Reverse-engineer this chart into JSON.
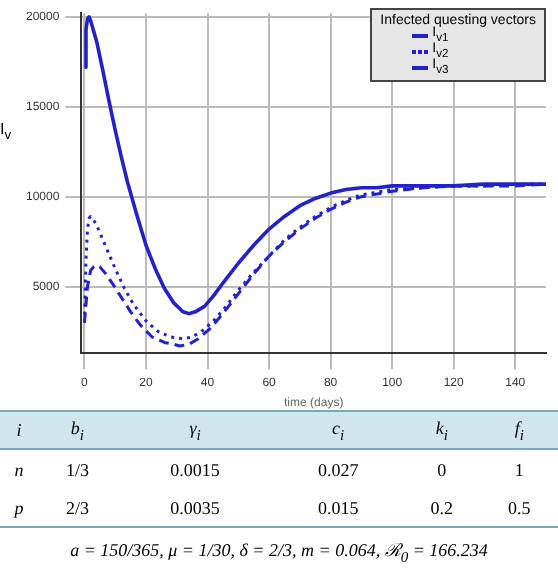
{
  "chart_data": {
    "type": "line",
    "xlabel": "time (days)",
    "ylabel": "I$_{v}$",
    "legend_title": "Infected  questing vectors",
    "legend": "top right",
    "grid": true,
    "marker": "none",
    "xlim": [
      -1,
      150
    ],
    "xticks": [
      0,
      20,
      40,
      60,
      80,
      100,
      120,
      140
    ],
    "ylim": [
      1300,
      20200
    ],
    "yticks": [
      5000,
      10000,
      15000,
      20000
    ],
    "series": [
      {
        "name": "I$_{v1}$",
        "color": "#2222cc",
        "line_style": "solid",
        "x": [
          0,
          0.5,
          1,
          1.5,
          2,
          3,
          4,
          6,
          8,
          10,
          12,
          14,
          17,
          20,
          23,
          26,
          29,
          32,
          34,
          36,
          39,
          42,
          45,
          50,
          55,
          60,
          65,
          70,
          75,
          80,
          85,
          90,
          95,
          100,
          110,
          120,
          130,
          140,
          150
        ],
        "values": [
          17200,
          19300,
          19900,
          20000,
          19800,
          19200,
          18600,
          17000,
          15300,
          13700,
          12200,
          10800,
          9000,
          7300,
          6000,
          4900,
          4100,
          3600,
          3500,
          3600,
          3900,
          4500,
          5200,
          6300,
          7300,
          8200,
          8900,
          9500,
          9900,
          10200,
          10400,
          10500,
          10500,
          10600,
          10600,
          10600,
          10700,
          10700,
          10700
        ]
      },
      {
        "name": "I$_{v2}$",
        "color": "#2222cc",
        "line_style": "dotted",
        "x": [
          0,
          0.5,
          1,
          1.5,
          2,
          3,
          4,
          6,
          8,
          10,
          13,
          16,
          20,
          24,
          28,
          32,
          35,
          38,
          42,
          46,
          50,
          55,
          60,
          65,
          70,
          75,
          80,
          85,
          90,
          100,
          110,
          120,
          130,
          140,
          150
        ],
        "values": [
          3000,
          6500,
          8200,
          8800,
          8900,
          8700,
          8400,
          7600,
          6800,
          6000,
          4900,
          4000,
          3100,
          2500,
          2200,
          2100,
          2200,
          2500,
          3100,
          3900,
          4800,
          5800,
          6700,
          7600,
          8300,
          8900,
          9400,
          9800,
          10100,
          10400,
          10500,
          10600,
          10600,
          10700,
          10700
        ]
      },
      {
        "name": "I$_{v3}$",
        "color": "#2222cc",
        "line_style": "dashed",
        "x": [
          0,
          0.5,
          1,
          2,
          3,
          4,
          5,
          7,
          9,
          12,
          15,
          18,
          22,
          26,
          29,
          31,
          34,
          37,
          41,
          45,
          50,
          55,
          60,
          65,
          70,
          75,
          80,
          85,
          90,
          100,
          110,
          120,
          130,
          140,
          150
        ],
        "values": [
          3000,
          4000,
          5000,
          5900,
          6100,
          6200,
          6100,
          5700,
          5200,
          4400,
          3600,
          2900,
          2200,
          1900,
          1800,
          1700,
          1800,
          2100,
          2700,
          3500,
          4600,
          5700,
          6700,
          7500,
          8200,
          8800,
          9300,
          9700,
          10000,
          10300,
          10500,
          10600,
          10600,
          10600,
          10700
        ]
      }
    ],
    "annotations": [
      "i",
      "b$_{i}$",
      "γ$_{i}$",
      "c$_{i}$",
      "k$_{i}$",
      "f$_{i}$",
      "n",
      "1/3",
      "0.0015",
      "0.027",
      "0",
      "1",
      "p",
      "2/3",
      "0.0035",
      "0.015",
      "0.2",
      "0.5",
      "a = 150/365,   μ = 1/30,   δ = 2/3,   m = 0.064,   ℛ$_{0}$ = 166.234"
    ]
  }
}
